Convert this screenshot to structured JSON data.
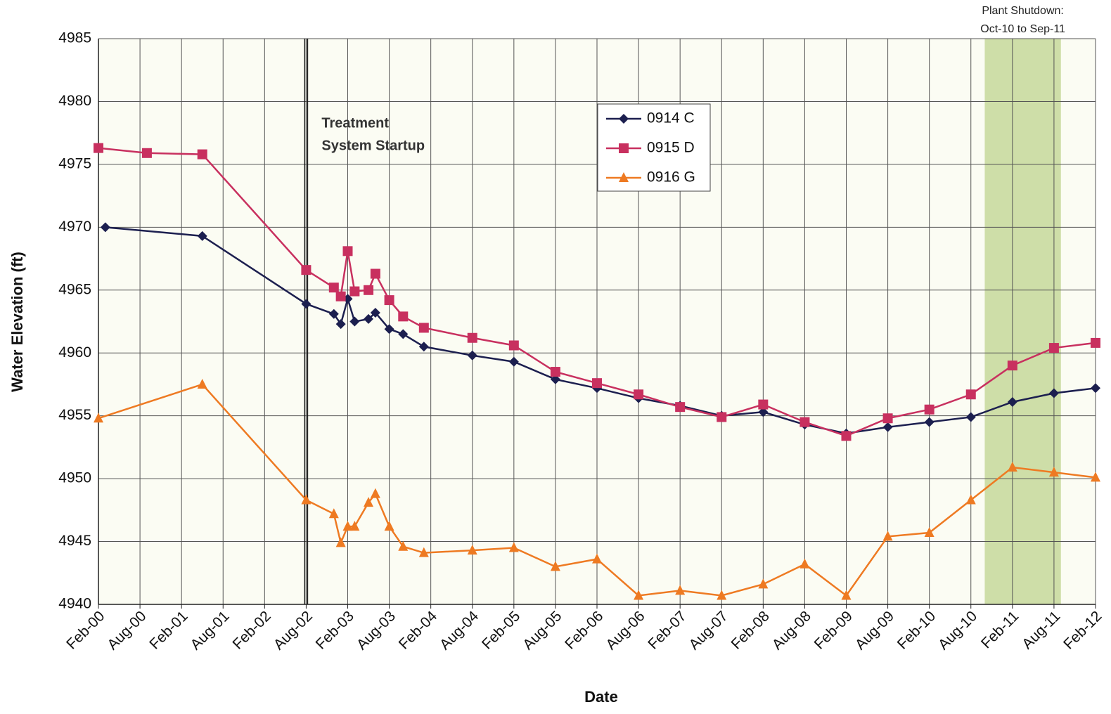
{
  "chart_data": {
    "type": "line",
    "x_label": "Date",
    "y_label": "Water Elevation (ft)",
    "xlim": [
      "Feb-00",
      "Feb-12"
    ],
    "xticks": [
      "Feb-00",
      "Aug-00",
      "Feb-01",
      "Aug-01",
      "Feb-02",
      "Aug-02",
      "Feb-03",
      "Aug-03",
      "Feb-04",
      "Aug-04",
      "Feb-05",
      "Aug-05",
      "Feb-06",
      "Aug-06",
      "Feb-07",
      "Aug-07",
      "Feb-08",
      "Aug-08",
      "Feb-09",
      "Aug-09",
      "Feb-10",
      "Aug-10",
      "Feb-11",
      "Aug-11",
      "Feb-12"
    ],
    "ylim": [
      4940,
      4985
    ],
    "yticks": [
      4940,
      4945,
      4950,
      4955,
      4960,
      4965,
      4970,
      4975,
      4980,
      4985
    ],
    "grid": true,
    "legend": "upper-center",
    "startup_line": {
      "x": "Aug-02",
      "label": [
        "Treatment",
        "System Startup"
      ]
    },
    "shaded_region": {
      "start": "Oct-10",
      "end": "Sep-11",
      "color": "#c5d89a",
      "label": [
        "Plant Shutdown:",
        "Oct-10 to Sep-11"
      ]
    },
    "series": [
      {
        "name": "0914 C",
        "color": "#1c1f4f",
        "marker": "diamond",
        "x": [
          "Mar-00",
          "May-01",
          "Aug-02",
          "Dec-02",
          "Jan-03",
          "Feb-03",
          "Mar-03",
          "May-03",
          "Jun-03",
          "Aug-03",
          "Oct-03",
          "Jan-04",
          "Aug-04",
          "Feb-05",
          "Aug-05",
          "Feb-06",
          "Aug-06",
          "Feb-07",
          "Aug-07",
          "Feb-08",
          "Aug-08",
          "Feb-09",
          "Aug-09",
          "Feb-10",
          "Aug-10",
          "Feb-11",
          "Aug-11",
          "Feb-12"
        ],
        "values": [
          4970.0,
          4969.3,
          4963.9,
          4963.1,
          4962.3,
          4964.3,
          4962.5,
          4962.7,
          4963.2,
          4961.9,
          4961.5,
          4960.5,
          4959.8,
          4959.3,
          4957.9,
          4957.2,
          4956.4,
          4955.8,
          4955.0,
          4955.3,
          4954.3,
          4953.6,
          4954.1,
          4954.5,
          4954.9,
          4956.1,
          4956.8,
          4957.2
        ]
      },
      {
        "name": "0915 D",
        "color": "#c8305f",
        "marker": "square",
        "x": [
          "Feb-00",
          "Sep-00",
          "May-01",
          "Aug-02",
          "Dec-02",
          "Jan-03",
          "Feb-03",
          "Mar-03",
          "May-03",
          "Jun-03",
          "Aug-03",
          "Oct-03",
          "Jan-04",
          "Aug-04",
          "Feb-05",
          "Aug-05",
          "Feb-06",
          "Aug-06",
          "Feb-07",
          "Aug-07",
          "Feb-08",
          "Aug-08",
          "Feb-09",
          "Aug-09",
          "Feb-10",
          "Aug-10",
          "Feb-11",
          "Aug-11",
          "Feb-12"
        ],
        "values": [
          4976.3,
          4975.9,
          4975.8,
          4966.6,
          4965.2,
          4964.5,
          4968.1,
          4964.9,
          4965.0,
          4966.3,
          4964.2,
          4962.9,
          4962.0,
          4961.2,
          4960.6,
          4958.5,
          4957.6,
          4956.7,
          4955.7,
          4954.9,
          4955.9,
          4954.5,
          4953.4,
          4954.8,
          4955.5,
          4956.7,
          4959.0,
          4960.4,
          4960.8
        ]
      },
      {
        "name": "0916 G",
        "color": "#ee7a22",
        "marker": "triangle",
        "x": [
          "Feb-00",
          "May-01",
          "Aug-02",
          "Dec-02",
          "Jan-03",
          "Feb-03",
          "Mar-03",
          "May-03",
          "Jun-03",
          "Aug-03",
          "Oct-03",
          "Jan-04",
          "Aug-04",
          "Feb-05",
          "Aug-05",
          "Feb-06",
          "Aug-06",
          "Feb-07",
          "Aug-07",
          "Feb-08",
          "Aug-08",
          "Feb-09",
          "Aug-09",
          "Feb-10",
          "Aug-10",
          "Feb-11",
          "Aug-11",
          "Feb-12"
        ],
        "values": [
          4954.8,
          4957.5,
          4948.3,
          4947.2,
          4944.9,
          4946.2,
          4946.2,
          4948.1,
          4948.8,
          4946.2,
          4944.6,
          4944.1,
          4944.3,
          4944.5,
          4943.0,
          4943.6,
          4940.7,
          4941.1,
          4940.7,
          4941.6,
          4943.2,
          4940.7,
          4945.4,
          4945.7,
          4948.3,
          4950.9,
          4950.5,
          4950.1
        ]
      }
    ]
  }
}
